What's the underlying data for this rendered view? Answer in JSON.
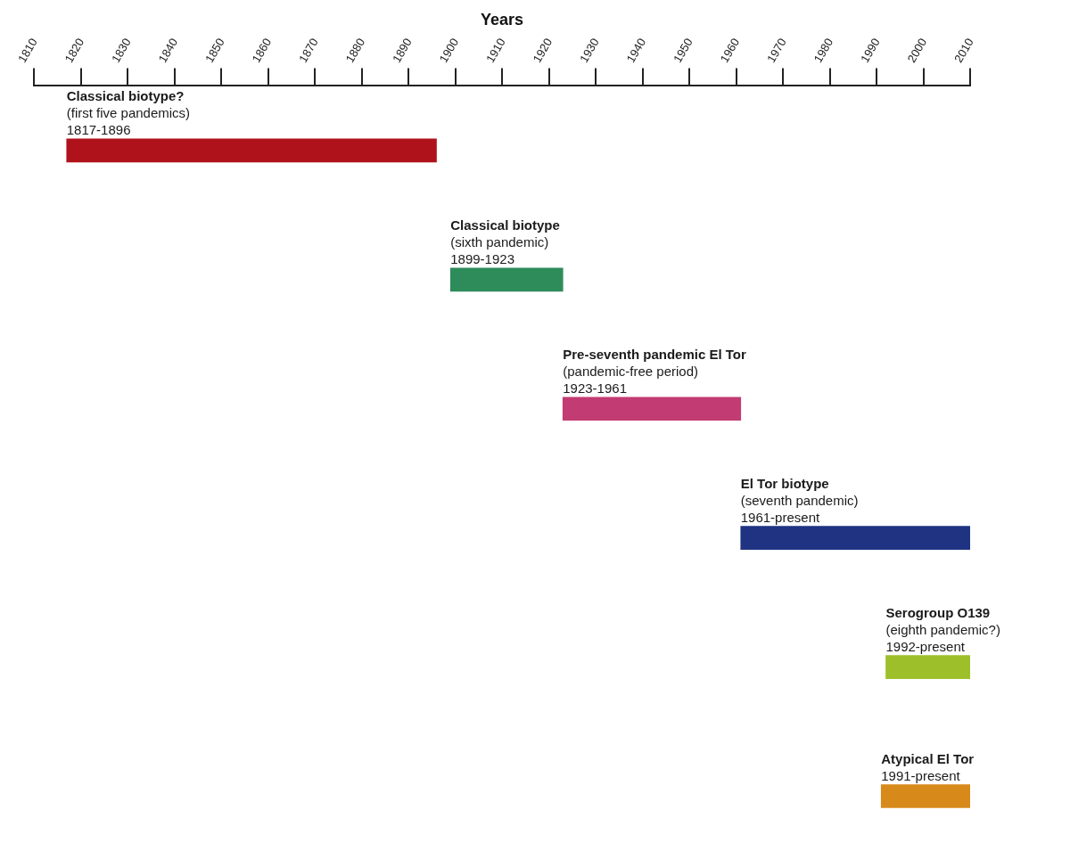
{
  "chart_data": {
    "type": "bar",
    "orientation": "horizontal",
    "xlabel": "Years",
    "categories": [
      "Classical biotype?",
      "Classical biotype",
      "Pre-seventh pandemic El Tor",
      "El Tor biotype",
      "Serogroup O139",
      "Atypical El Tor"
    ],
    "base": [
      1817,
      1899,
      1923,
      1961,
      1992,
      1991
    ],
    "values": [
      79,
      24,
      38,
      49,
      18,
      19
    ],
    "colors": [
      "#b0121b",
      "#2e8b5a",
      "#c23b72",
      "#1f3382",
      "#9dc02a",
      "#d78a1a"
    ],
    "annotations": [
      {
        "text": "(first five pandemics)\n1817-1896",
        "x": 1817,
        "y": "Classical biotype?"
      },
      {
        "text": "(sixth pandemic)\n1899-1923",
        "x": 1899,
        "y": "Classical biotype"
      },
      {
        "text": "(pandemic-free period)\n1923-1961",
        "x": 1923,
        "y": "Pre-seventh pandemic El Tor"
      },
      {
        "text": "(seventh pandemic)\n1961-present",
        "x": 1961,
        "y": "El Tor biotype"
      },
      {
        "text": "(eighth pandemic?)\n1992-present",
        "x": 1992,
        "y": "Serogroup O139"
      },
      {
        "text": "1991-present",
        "x": 1991,
        "y": "Atypical El Tor"
      }
    ],
    "xlim": [
      1810,
      2010
    ],
    "xticks": [
      1810,
      1820,
      1830,
      1840,
      1850,
      1860,
      1870,
      1880,
      1890,
      1900,
      1910,
      1920,
      1930,
      1940,
      1950,
      1960,
      1970,
      1980,
      1990,
      2000,
      2010
    ],
    "grid": false,
    "legend": false
  }
}
